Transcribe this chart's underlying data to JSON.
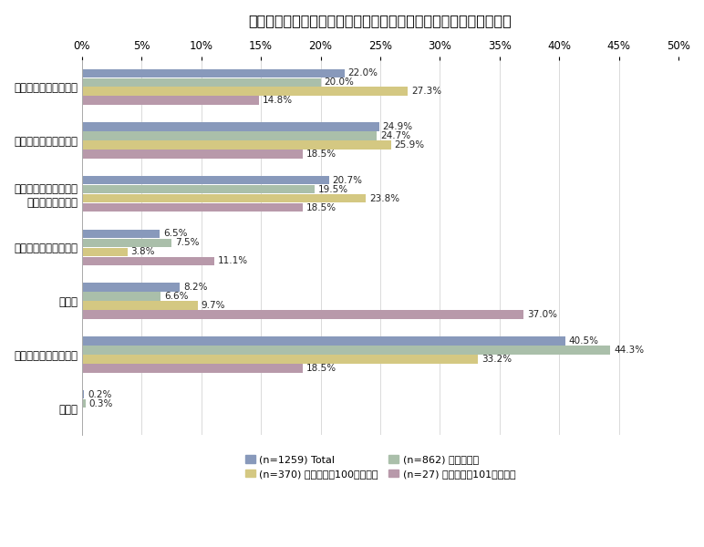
{
  "title": "【情報セキュリティ対策投資を行わなかった理由（企業規模別）】",
  "categories": [
    "コストがかかり過ぎる",
    "費用対効果が見えない",
    "どこからどう始めたら\nよいかわからない",
    "導入後の手間がかかる",
    "その他",
    "必要性を感じていない",
    "無回答"
  ],
  "series": [
    {
      "label": "(n=1259) Total",
      "color": "#8899bb",
      "values": [
        22.0,
        24.9,
        20.7,
        6.5,
        8.2,
        40.5,
        0.2
      ]
    },
    {
      "label": "(n=862) 小規模企業",
      "color": "#aabfaa",
      "values": [
        20.0,
        24.7,
        19.5,
        7.5,
        6.6,
        44.3,
        0.3
      ]
    },
    {
      "label": "(n=370) 中小企業（100人以下）",
      "color": "#d4c882",
      "values": [
        27.3,
        25.9,
        23.8,
        3.8,
        9.7,
        33.2,
        0.0
      ]
    },
    {
      "label": "(n=27) 中小企業（101人以上）",
      "color": "#b899aa",
      "values": [
        14.8,
        18.5,
        18.5,
        11.1,
        37.0,
        18.5,
        0.0
      ]
    }
  ],
  "xlim": [
    0,
    50
  ],
  "xticks": [
    0,
    5,
    10,
    15,
    20,
    25,
    30,
    35,
    40,
    45,
    50
  ],
  "background_color": "#ffffff",
  "bar_height": 0.17,
  "title_fontsize": 11.5,
  "tick_fontsize": 8.5,
  "label_fontsize": 7.5,
  "legend_fontsize": 8.0
}
